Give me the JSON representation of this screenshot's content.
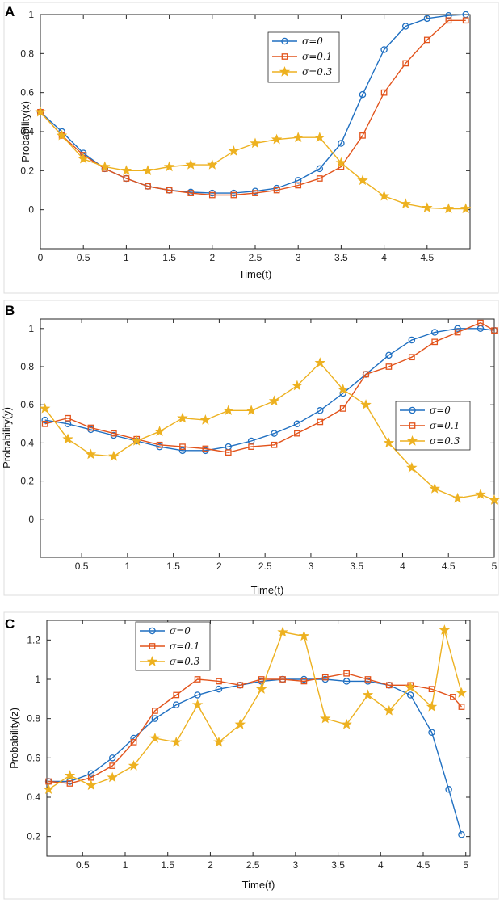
{
  "colors": {
    "s0": "#1f6fc1",
    "s1": "#e2531b",
    "s3": "#edb120"
  },
  "chart_data": [
    {
      "type": "line",
      "panel": "A",
      "xlabel": "Time(t)",
      "ylabel": "Probability(x)",
      "xlim": [
        0,
        5
      ],
      "ylim": [
        -0.2,
        1
      ],
      "xticks": [
        0,
        0.5,
        1,
        1.5,
        2,
        2.5,
        3,
        3.5,
        4,
        4.5
      ],
      "xticklabels": [
        "0",
        "0.5",
        "1",
        "1.5",
        "2",
        "2.5",
        "3",
        "3.5",
        "4",
        "4.5"
      ],
      "yticks": [
        0,
        0.2,
        0.4,
        0.6,
        0.8,
        1
      ],
      "yticklabels": [
        "0",
        "0.2",
        "0.4",
        "0.6",
        "0.8",
        "1"
      ],
      "legend_position": "top-right",
      "series": [
        {
          "name": "σ=0",
          "marker": "circle",
          "color": "#1f6fc1",
          "x": [
            0,
            0.25,
            0.5,
            0.75,
            1,
            1.25,
            1.5,
            1.75,
            2,
            2.25,
            2.5,
            2.75,
            3,
            3.25,
            3.5,
            3.75,
            4,
            4.25,
            4.5,
            4.75,
            4.95
          ],
          "y": [
            0.5,
            0.4,
            0.29,
            0.21,
            0.16,
            0.12,
            0.1,
            0.09,
            0.085,
            0.085,
            0.095,
            0.11,
            0.15,
            0.21,
            0.34,
            0.59,
            0.82,
            0.94,
            0.98,
            0.995,
            1.0
          ]
        },
        {
          "name": "σ=0.1",
          "marker": "square",
          "color": "#e2531b",
          "x": [
            0,
            0.25,
            0.5,
            0.75,
            1,
            1.25,
            1.5,
            1.75,
            2,
            2.25,
            2.5,
            2.75,
            3,
            3.25,
            3.5,
            3.75,
            4,
            4.25,
            4.5,
            4.75,
            4.95
          ],
          "y": [
            0.5,
            0.38,
            0.28,
            0.21,
            0.16,
            0.12,
            0.1,
            0.085,
            0.075,
            0.075,
            0.085,
            0.1,
            0.125,
            0.16,
            0.22,
            0.38,
            0.6,
            0.75,
            0.87,
            0.97,
            0.97
          ]
        },
        {
          "name": "σ=0.3",
          "marker": "star",
          "color": "#edb120",
          "x": [
            0,
            0.25,
            0.5,
            0.75,
            1,
            1.25,
            1.5,
            1.75,
            2,
            2.25,
            2.5,
            2.75,
            3,
            3.25,
            3.5,
            3.75,
            4,
            4.25,
            4.5,
            4.75,
            4.95
          ],
          "y": [
            0.5,
            0.38,
            0.26,
            0.22,
            0.2,
            0.2,
            0.22,
            0.23,
            0.23,
            0.3,
            0.34,
            0.36,
            0.37,
            0.37,
            0.24,
            0.15,
            0.07,
            0.03,
            0.01,
            0.005,
            0.005
          ]
        }
      ]
    },
    {
      "type": "line",
      "panel": "B",
      "xlabel": "Time(t)",
      "ylabel": "Probability(y)",
      "xlim": [
        0.05,
        5
      ],
      "ylim": [
        -0.2,
        1.05
      ],
      "xticks": [
        0.5,
        1,
        1.5,
        2,
        2.5,
        3,
        3.5,
        4,
        4.5,
        5
      ],
      "xticklabels": [
        "0.5",
        "1",
        "1.5",
        "2",
        "2.5",
        "3",
        "3.5",
        "4",
        "4.5",
        "5"
      ],
      "yticks": [
        0,
        0.2,
        0.4,
        0.6,
        0.8,
        1
      ],
      "yticklabels": [
        "0",
        "0.2",
        "0.4",
        "0.6",
        "0.8",
        "1"
      ],
      "legend_position": "right",
      "series": [
        {
          "name": "σ=0",
          "marker": "circle",
          "color": "#1f6fc1",
          "x": [
            0.1,
            0.35,
            0.6,
            0.85,
            1.1,
            1.35,
            1.6,
            1.85,
            2.1,
            2.35,
            2.6,
            2.85,
            3.1,
            3.35,
            3.6,
            3.85,
            4.1,
            4.35,
            4.6,
            4.85,
            5.0
          ],
          "y": [
            0.52,
            0.5,
            0.47,
            0.44,
            0.41,
            0.38,
            0.36,
            0.36,
            0.38,
            0.41,
            0.45,
            0.5,
            0.57,
            0.66,
            0.76,
            0.86,
            0.94,
            0.98,
            1.0,
            1.0,
            0.99
          ]
        },
        {
          "name": "σ=0.1",
          "marker": "square",
          "color": "#e2531b",
          "x": [
            0.1,
            0.35,
            0.6,
            0.85,
            1.1,
            1.35,
            1.6,
            1.85,
            2.1,
            2.35,
            2.6,
            2.85,
            3.1,
            3.35,
            3.6,
            3.85,
            4.1,
            4.35,
            4.6,
            4.85,
            5.0
          ],
          "y": [
            0.5,
            0.53,
            0.48,
            0.45,
            0.42,
            0.39,
            0.38,
            0.37,
            0.35,
            0.38,
            0.39,
            0.45,
            0.51,
            0.58,
            0.76,
            0.8,
            0.85,
            0.93,
            0.98,
            1.03,
            0.99
          ]
        },
        {
          "name": "σ=0.3",
          "marker": "star",
          "color": "#edb120",
          "x": [
            0.1,
            0.35,
            0.6,
            0.85,
            1.1,
            1.35,
            1.6,
            1.85,
            2.1,
            2.35,
            2.6,
            2.85,
            3.1,
            3.35,
            3.6,
            3.85,
            4.1,
            4.35,
            4.6,
            4.85,
            5.0
          ],
          "y": [
            0.58,
            0.42,
            0.34,
            0.33,
            0.41,
            0.46,
            0.53,
            0.52,
            0.57,
            0.57,
            0.62,
            0.7,
            0.82,
            0.68,
            0.6,
            0.4,
            0.27,
            0.16,
            0.11,
            0.13,
            0.1
          ]
        }
      ]
    },
    {
      "type": "line",
      "panel": "C",
      "xlabel": "Time(t)",
      "ylabel": "Probability(z)",
      "xlim": [
        0.08,
        5.05
      ],
      "ylim": [
        0.1,
        1.3
      ],
      "xticks": [
        0.5,
        1,
        1.5,
        2,
        2.5,
        3,
        3.5,
        4,
        4.5,
        5
      ],
      "xticklabels": [
        "0.5",
        "1",
        "1.5",
        "2",
        "2.5",
        "3",
        "3.5",
        "4",
        "4.5",
        "5"
      ],
      "yticks": [
        0.2,
        0.4,
        0.6,
        0.8,
        1,
        1.2
      ],
      "yticklabels": [
        "0.2",
        "0.4",
        "0.6",
        "0.8",
        "1",
        "1.2"
      ],
      "legend_position": "top-left",
      "series": [
        {
          "name": "σ=0",
          "marker": "circle",
          "color": "#1f6fc1",
          "x": [
            0.1,
            0.35,
            0.6,
            0.85,
            1.1,
            1.35,
            1.6,
            1.85,
            2.1,
            2.35,
            2.6,
            2.85,
            3.1,
            3.35,
            3.6,
            3.85,
            4.1,
            4.35,
            4.6,
            4.8,
            4.95
          ],
          "y": [
            0.48,
            0.48,
            0.52,
            0.6,
            0.7,
            0.8,
            0.87,
            0.92,
            0.95,
            0.97,
            0.99,
            1.0,
            1.0,
            1.0,
            0.99,
            0.99,
            0.97,
            0.92,
            0.73,
            0.44,
            0.21
          ]
        },
        {
          "name": "σ=0.1",
          "marker": "square",
          "color": "#e2531b",
          "x": [
            0.1,
            0.35,
            0.6,
            0.85,
            1.1,
            1.35,
            1.6,
            1.85,
            2.1,
            2.35,
            2.6,
            2.85,
            3.1,
            3.35,
            3.6,
            3.85,
            4.1,
            4.35,
            4.6,
            4.85,
            4.95
          ],
          "y": [
            0.48,
            0.47,
            0.5,
            0.56,
            0.68,
            0.84,
            0.92,
            1.0,
            0.99,
            0.97,
            1.0,
            1.0,
            0.99,
            1.01,
            1.03,
            1.0,
            0.97,
            0.97,
            0.95,
            0.91,
            0.86
          ]
        },
        {
          "name": "σ=0.3",
          "marker": "star",
          "color": "#edb120",
          "x": [
            0.1,
            0.35,
            0.6,
            0.85,
            1.1,
            1.35,
            1.6,
            1.85,
            2.1,
            2.35,
            2.6,
            2.85,
            3.1,
            3.35,
            3.6,
            3.85,
            4.1,
            4.35,
            4.6,
            4.75,
            4.95
          ],
          "y": [
            0.44,
            0.51,
            0.46,
            0.5,
            0.56,
            0.7,
            0.68,
            0.87,
            0.68,
            0.77,
            0.95,
            1.24,
            1.22,
            0.8,
            0.77,
            0.92,
            0.84,
            0.96,
            0.86,
            1.25,
            0.93
          ]
        }
      ]
    }
  ]
}
